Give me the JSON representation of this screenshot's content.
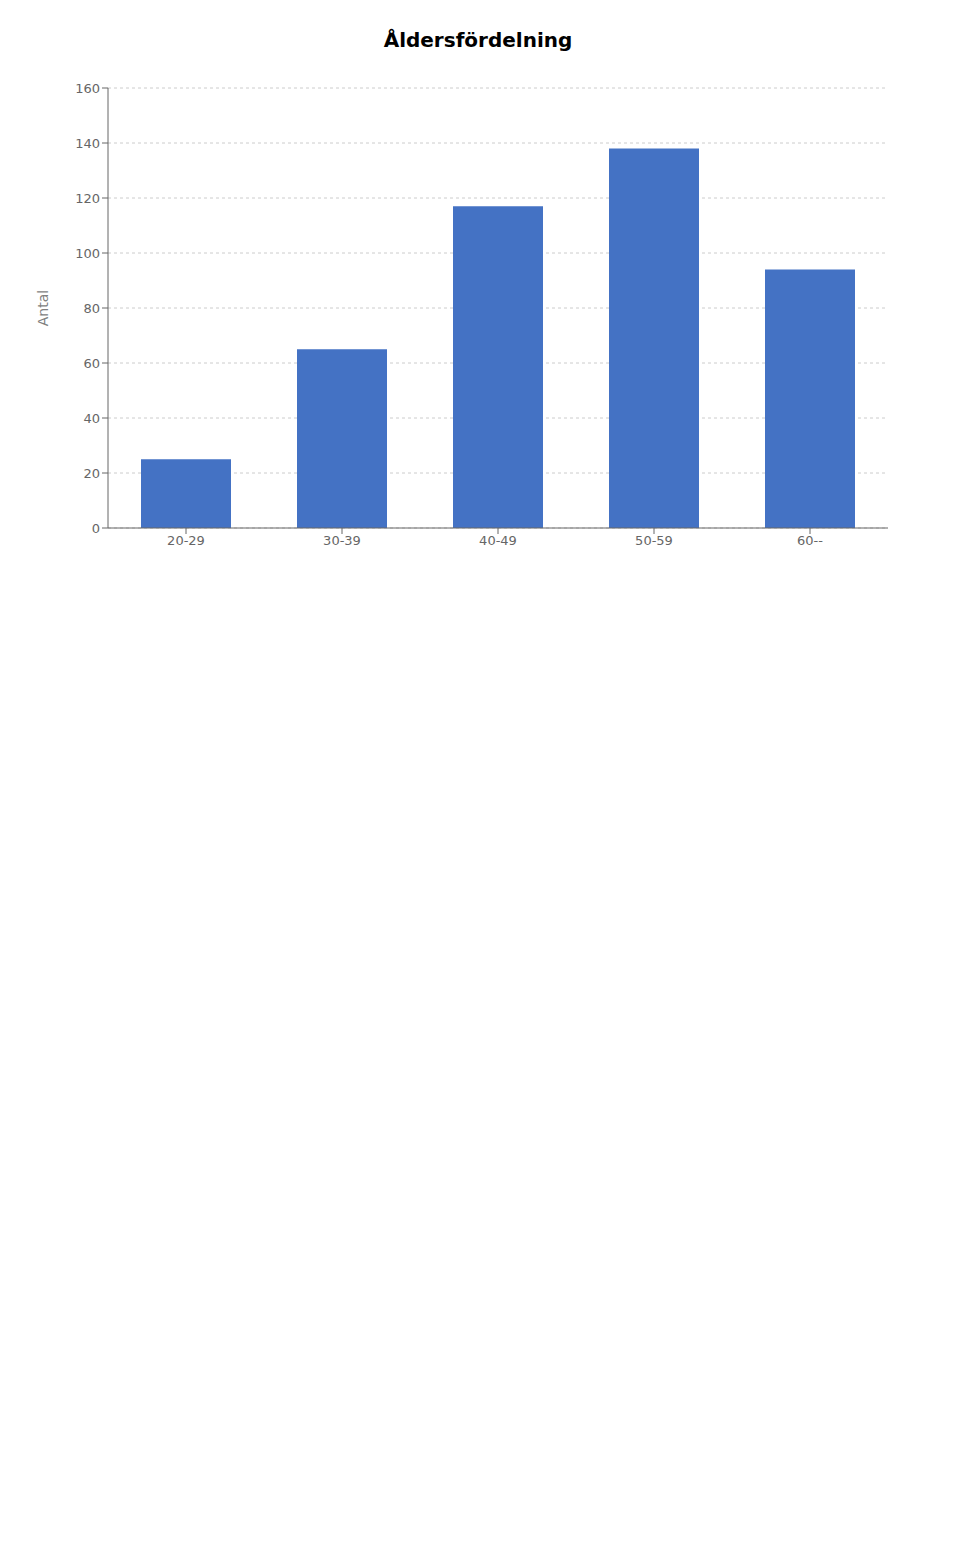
{
  "chart_data": {
    "type": "bar",
    "title": "Åldersfördelning",
    "categories": [
      "20-29",
      "30-39",
      "40-49",
      "50-59",
      "60--"
    ],
    "values": [
      25,
      65,
      117,
      138,
      94
    ],
    "color": "#4472C4",
    "ylabel": "Antal",
    "ylim": [
      0,
      160
    ],
    "yticks": [
      0,
      20,
      40,
      60,
      80,
      100,
      120,
      140,
      160
    ],
    "grid": true
  }
}
